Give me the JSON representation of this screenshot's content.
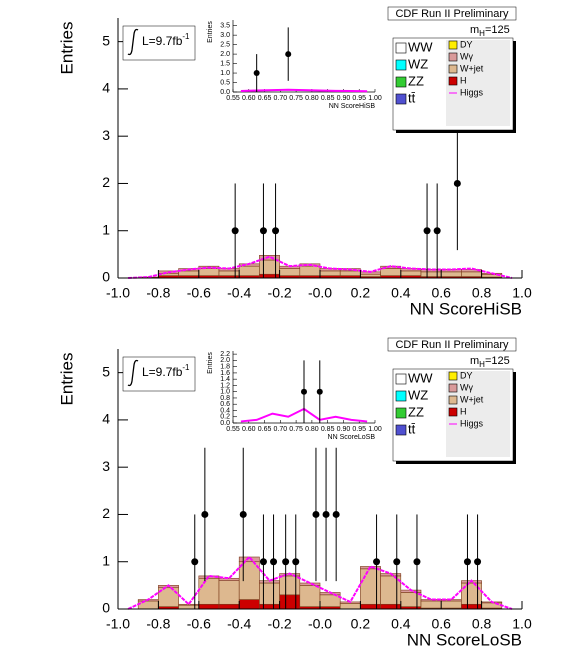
{
  "chart_data": [
    {
      "type": "histogram",
      "title": "CDF Run II Preliminary",
      "mass_label": [
        "m",
        "H",
        "=125"
      ],
      "lumi": "L=9.7fb",
      "lumi_sup": "-1",
      "xlabel": "NN ScoreHiSB",
      "ylabel": "Entries",
      "xlim": [
        -1,
        1
      ],
      "ylim": [
        0,
        5.5
      ],
      "xticks": [
        {
          "value": -1,
          "label": "-1.0"
        },
        -0.8,
        -0.6,
        -0.4,
        -0.2,
        {
          "value": 0,
          "label": "-0.0"
        },
        0.2,
        0.4,
        0.6,
        0.8,
        {
          "value": 1,
          "label": "1.0"
        }
      ],
      "yticks": [
        0,
        1,
        2,
        3,
        4,
        5
      ],
      "bins": [
        -1,
        -0.9,
        -0.8,
        -0.7,
        -0.6,
        -0.5,
        -0.4,
        -0.3,
        -0.2,
        -0.1,
        0,
        0.1,
        0.2,
        0.3,
        0.4,
        0.5,
        0.6,
        0.7,
        0.8,
        0.9,
        1
      ],
      "series": [
        {
          "name": "WW",
          "color": "#ffffff",
          "values": [
            0,
            0,
            0,
            0,
            0,
            0,
            0,
            0,
            0,
            0,
            0,
            0,
            0,
            0,
            0,
            0,
            0,
            0,
            0,
            0
          ]
        },
        {
          "name": "WZ",
          "color": "#00ffff",
          "values": [
            0,
            0,
            0,
            0,
            0,
            0,
            0,
            0,
            0,
            0,
            0,
            0,
            0,
            0,
            0,
            0,
            0,
            0,
            0,
            0
          ]
        },
        {
          "name": "ZZ",
          "color": "#33cc33",
          "values": [
            0,
            0,
            0,
            0,
            0,
            0,
            0,
            0,
            0,
            0,
            0,
            0,
            0,
            0,
            0,
            0,
            0,
            0,
            0,
            0
          ]
        },
        {
          "name": "tt̄",
          "color": "#5050d0",
          "values": [
            0,
            0,
            0,
            0,
            0,
            0,
            0,
            0,
            0,
            0,
            0,
            0,
            0,
            0,
            0,
            0,
            0,
            0,
            0,
            0
          ]
        },
        {
          "name": "DY",
          "color": "#ffee00",
          "values": [
            0,
            0,
            0,
            0,
            0,
            0,
            0,
            0,
            0,
            0,
            0,
            0,
            0,
            0,
            0,
            0,
            0,
            0,
            0,
            0
          ]
        },
        {
          "name": "Wγ",
          "color": "#d99a9a",
          "values": [
            0,
            0,
            0.05,
            0.05,
            0.05,
            0.05,
            0.05,
            0.1,
            0.05,
            0.05,
            0.05,
            0.05,
            0.05,
            0.05,
            0.05,
            0.05,
            0.05,
            0.05,
            0.03,
            0
          ]
        },
        {
          "name": "W+jet",
          "color": "#ddb88f",
          "values": [
            0,
            0,
            0.05,
            0.1,
            0.15,
            0.1,
            0.2,
            0.3,
            0.15,
            0.2,
            0.1,
            0.1,
            0.05,
            0.15,
            0.1,
            0.1,
            0.1,
            0.1,
            0.05,
            0
          ]
        },
        {
          "name": "H",
          "color": "#cc0000",
          "values": [
            0,
            0.02,
            0.05,
            0.05,
            0.05,
            0.05,
            0.05,
            0.08,
            0.05,
            0.05,
            0.05,
            0.05,
            0.03,
            0.05,
            0.05,
            0.03,
            0.03,
            0.03,
            0.02,
            0
          ]
        }
      ],
      "signal": {
        "name": "Higgs",
        "color": "#ff00ff",
        "values": [
          0,
          0.02,
          0.12,
          0.18,
          0.22,
          0.2,
          0.3,
          0.45,
          0.25,
          0.28,
          0.2,
          0.18,
          0.13,
          0.25,
          0.2,
          0.18,
          0.18,
          0.2,
          0.1,
          0
        ]
      },
      "points": {
        "x": [
          -0.42,
          -0.28,
          -0.22,
          0.53,
          0.58,
          0.68
        ],
        "y": [
          1,
          1,
          1,
          1,
          1,
          2
        ],
        "yerr": [
          1,
          1,
          1,
          1,
          1,
          1.41
        ]
      },
      "inset": {
        "xlabel": "NN ScoreHiSB",
        "ylabel": "Entries",
        "xlim": [
          0.55,
          1
        ],
        "ylim": [
          0,
          3.8
        ],
        "xticks": [
          0.55,
          {
            "value": 0.6,
            "label": "0.60"
          },
          0.65,
          {
            "value": 0.7,
            "label": "0.70"
          },
          0.75,
          {
            "value": 0.8,
            "label": "0.80"
          },
          0.85,
          {
            "value": 0.9,
            "label": "0.90"
          },
          0.95,
          {
            "value": 1,
            "label": "1.00"
          }
        ],
        "yticks": [
          {
            "value": 0,
            "label": "0.0"
          },
          0.5,
          {
            "value": 1,
            "label": "1.0"
          },
          1.5,
          {
            "value": 2,
            "label": "2.0"
          },
          2.5,
          {
            "value": 3,
            "label": "3.0"
          },
          3.5
        ],
        "points": {
          "x": [
            0.625,
            0.725
          ],
          "y": [
            1,
            2
          ],
          "yerr": [
            1,
            1.41
          ]
        },
        "signal": {
          "x": [
            0.575,
            0.625,
            0.675,
            0.725,
            0.775,
            0.825,
            0.875,
            0.925,
            0.975
          ],
          "values": [
            0.05,
            0.08,
            0.1,
            0.12,
            0.1,
            0.08,
            0.06,
            0.05,
            0.04
          ]
        }
      }
    },
    {
      "type": "histogram",
      "title": "CDF Run II Preliminary",
      "mass_label": [
        "m",
        "H",
        "=125"
      ],
      "lumi": "L=9.7fb",
      "lumi_sup": "-1",
      "xlabel": "NN ScoreLoSB",
      "ylabel": "Entries",
      "xlim": [
        -1,
        1
      ],
      "ylim": [
        0,
        5.5
      ],
      "xticks": [
        {
          "value": -1,
          "label": "-1.0"
        },
        -0.8,
        -0.6,
        -0.4,
        -0.2,
        {
          "value": 0,
          "label": "-0.0"
        },
        0.2,
        0.4,
        0.6,
        0.8,
        {
          "value": 1,
          "label": "1.0"
        }
      ],
      "yticks": [
        0,
        1,
        2,
        3,
        4,
        5
      ],
      "bins": [
        -1,
        -0.9,
        -0.8,
        -0.7,
        -0.6,
        -0.5,
        -0.4,
        -0.3,
        -0.2,
        -0.1,
        0,
        0.1,
        0.2,
        0.3,
        0.4,
        0.5,
        0.6,
        0.7,
        0.8,
        0.9,
        1
      ],
      "series": [
        {
          "name": "WW",
          "color": "#ffffff",
          "values": [
            0,
            0,
            0,
            0,
            0,
            0,
            0,
            0,
            0,
            0,
            0,
            0,
            0,
            0,
            0,
            0,
            0,
            0,
            0,
            0
          ]
        },
        {
          "name": "WZ",
          "color": "#00ffff",
          "values": [
            0,
            0,
            0,
            0,
            0,
            0,
            0,
            0,
            0,
            0,
            0,
            0,
            0,
            0,
            0,
            0,
            0,
            0,
            0,
            0
          ]
        },
        {
          "name": "ZZ",
          "color": "#33cc33",
          "values": [
            0,
            0,
            0,
            0,
            0,
            0,
            0,
            0,
            0,
            0,
            0,
            0,
            0,
            0,
            0,
            0,
            0,
            0,
            0,
            0
          ]
        },
        {
          "name": "tt̄",
          "color": "#5050d0",
          "values": [
            0,
            0,
            0,
            0,
            0,
            0,
            0,
            0,
            0,
            0,
            0,
            0,
            0,
            0,
            0,
            0,
            0,
            0,
            0,
            0
          ]
        },
        {
          "name": "DY",
          "color": "#ffee00",
          "values": [
            0,
            0,
            0,
            0,
            0,
            0,
            0,
            0,
            0,
            0,
            0,
            0,
            0,
            0,
            0,
            0,
            0,
            0,
            0,
            0
          ]
        },
        {
          "name": "Wγ",
          "color": "#d99a9a",
          "values": [
            0,
            0.03,
            0.05,
            0.02,
            0.05,
            0.05,
            0.1,
            0.05,
            0.05,
            0.05,
            0.05,
            0.03,
            0.05,
            0.05,
            0.05,
            0.03,
            0.03,
            0.05,
            0.02,
            0
          ]
        },
        {
          "name": "W+jet",
          "color": "#ddb88f",
          "values": [
            0,
            0.17,
            0.4,
            0.08,
            0.55,
            0.5,
            0.8,
            0.45,
            0.4,
            0.45,
            0.25,
            0.12,
            0.75,
            0.6,
            0.3,
            0.15,
            0.15,
            0.45,
            0.11,
            0
          ]
        },
        {
          "name": "H",
          "color": "#cc0000",
          "values": [
            0,
            0,
            0.05,
            0,
            0.1,
            0.1,
            0.2,
            0.1,
            0.3,
            0.05,
            0.05,
            0,
            0.1,
            0.1,
            0.05,
            0.02,
            0.02,
            0.1,
            0.02,
            0
          ]
        }
      ],
      "signal": {
        "name": "Higgs",
        "color": "#ff00ff",
        "values": [
          0,
          0.2,
          0.5,
          0.1,
          0.7,
          0.65,
          1.1,
          0.6,
          0.75,
          0.55,
          0.35,
          0.15,
          0.9,
          0.75,
          0.4,
          0.2,
          0.2,
          0.6,
          0.15,
          0
        ]
      },
      "points": {
        "x": [
          -0.62,
          -0.57,
          -0.38,
          -0.28,
          -0.23,
          -0.17,
          -0.12,
          -0.02,
          0.03,
          0.08,
          0.28,
          0.38,
          0.48,
          0.73,
          0.78
        ],
        "y": [
          1,
          2,
          2,
          1,
          1,
          1,
          1,
          2,
          2,
          2,
          1,
          1,
          1,
          1,
          1
        ],
        "yerr": [
          1,
          1.41,
          1.41,
          1,
          1,
          1,
          1,
          1.41,
          1.41,
          1.41,
          1,
          1,
          1,
          1,
          1
        ]
      },
      "inset": {
        "xlabel": "NN ScoreLoSB",
        "ylabel": "Entries",
        "xlim": [
          0.55,
          1
        ],
        "ylim": [
          0,
          2.3
        ],
        "xticks": [
          0.55,
          {
            "value": 0.6,
            "label": "0.60"
          },
          0.65,
          {
            "value": 0.7,
            "label": "0.70"
          },
          0.75,
          {
            "value": 0.8,
            "label": "0.80"
          },
          0.85,
          {
            "value": 0.9,
            "label": "0.90"
          },
          0.95,
          {
            "value": 1,
            "label": "1.00"
          }
        ],
        "yticks": [
          {
            "value": 0,
            "label": "0.0"
          },
          0.2,
          0.4,
          0.6,
          0.8,
          {
            "value": 1,
            "label": "1.0"
          },
          1.2,
          1.4,
          1.6,
          1.8,
          {
            "value": 2,
            "label": "2.0"
          },
          2.2
        ],
        "points": {
          "x": [
            0.775,
            0.825
          ],
          "y": [
            1,
            1
          ],
          "yerr": [
            1,
            1
          ]
        },
        "signal": {
          "x": [
            0.575,
            0.625,
            0.675,
            0.725,
            0.775,
            0.825,
            0.875,
            0.925,
            0.975
          ],
          "values": [
            0.05,
            0.1,
            0.3,
            0.2,
            0.45,
            0.1,
            0.2,
            0.1,
            0.05
          ]
        }
      }
    }
  ]
}
